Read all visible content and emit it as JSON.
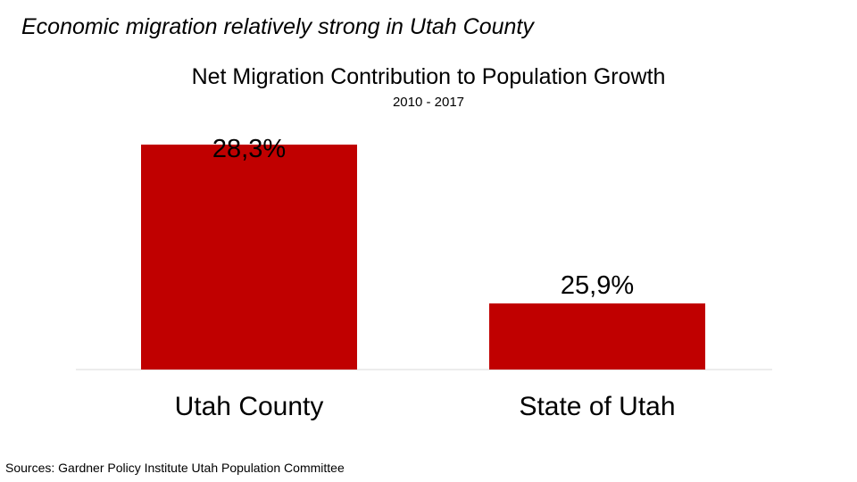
{
  "headline": "Economic migration relatively strong in Utah County",
  "source": "Sources:  Gardner Policy Institute Utah Population Committee",
  "colors": {
    "bar": "#c00000",
    "axis": "#d9d9d9",
    "text": "#000000"
  },
  "chart_data": {
    "type": "bar",
    "title": "Net Migration Contribution to Population Growth",
    "subtitle": "2010 - 2017",
    "categories": [
      "Utah County",
      "State of Utah"
    ],
    "values": [
      28.3,
      25.9
    ],
    "data_labels": [
      "28,3%",
      "25,9%"
    ],
    "unit": "%",
    "ylim": [
      24.9,
      28.3
    ],
    "grid": false,
    "legend": "none"
  }
}
